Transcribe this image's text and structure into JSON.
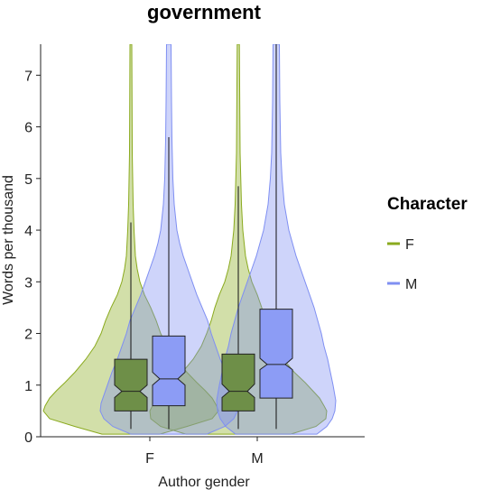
{
  "chart_data": {
    "type": "violin",
    "title": "government",
    "xlabel": "Author gender",
    "ylabel": "Words per thousand",
    "categories": [
      "F",
      "M"
    ],
    "yticks": [
      0,
      1,
      2,
      3,
      4,
      5,
      6,
      7
    ],
    "ylim": [
      0,
      7.6
    ],
    "legend": {
      "title": "Character",
      "placement": "right",
      "entries": [
        {
          "label": "F",
          "color": "#8aaa1e"
        },
        {
          "label": "M",
          "color": "#7f8ff2"
        }
      ]
    },
    "series": [
      {
        "name": "F",
        "color": "#8aaa1e",
        "box_fill": "#6e8f48",
        "groups": [
          {
            "category": "F",
            "q1": 0.5,
            "median": 0.88,
            "q3": 1.5,
            "notch_low": 0.76,
            "notch_high": 1.0,
            "whisker_low": 0.15,
            "whisker_high": 4.15,
            "density": [
              [
                0.05,
                0.32
              ],
              [
                0.2,
                0.62
              ],
              [
                0.35,
                0.9
              ],
              [
                0.5,
                0.97
              ],
              [
                0.6,
                0.95
              ],
              [
                0.75,
                0.9
              ],
              [
                0.9,
                0.82
              ],
              [
                1.05,
                0.73
              ],
              [
                1.25,
                0.62
              ],
              [
                1.5,
                0.5
              ],
              [
                1.75,
                0.4
              ],
              [
                2.0,
                0.33
              ],
              [
                2.25,
                0.28
              ],
              [
                2.5,
                0.22
              ],
              [
                2.75,
                0.15
              ],
              [
                3.0,
                0.1
              ],
              [
                3.25,
                0.07
              ],
              [
                3.5,
                0.05
              ],
              [
                4.0,
                0.035
              ],
              [
                4.5,
                0.025
              ],
              [
                5.5,
                0.015
              ],
              [
                7.6,
                0.01
              ]
            ]
          },
          {
            "category": "M",
            "q1": 0.5,
            "median": 0.88,
            "q3": 1.6,
            "notch_low": 0.76,
            "notch_high": 1.02,
            "whisker_low": 0.15,
            "whisker_high": 4.85,
            "density": [
              [
                0.05,
                0.58
              ],
              [
                0.2,
                0.86
              ],
              [
                0.35,
                0.97
              ],
              [
                0.5,
                0.98
              ],
              [
                0.6,
                0.95
              ],
              [
                0.75,
                0.9
              ],
              [
                0.9,
                0.82
              ],
              [
                1.05,
                0.74
              ],
              [
                1.25,
                0.62
              ],
              [
                1.5,
                0.5
              ],
              [
                1.75,
                0.41
              ],
              [
                2.0,
                0.35
              ],
              [
                2.25,
                0.3
              ],
              [
                2.5,
                0.26
              ],
              [
                2.75,
                0.21
              ],
              [
                3.0,
                0.15
              ],
              [
                3.25,
                0.11
              ],
              [
                3.5,
                0.08
              ],
              [
                4.0,
                0.05
              ],
              [
                4.5,
                0.035
              ],
              [
                5.5,
                0.02
              ],
              [
                7.6,
                0.012
              ]
            ]
          }
        ]
      },
      {
        "name": "M",
        "color": "#7f8ff2",
        "box_fill": "#8c9cf5",
        "groups": [
          {
            "category": "F",
            "q1": 0.6,
            "median": 1.12,
            "q3": 1.95,
            "notch_low": 1.0,
            "notch_high": 1.25,
            "whisker_low": 0.15,
            "whisker_high": 5.8,
            "density": [
              [
                0.05,
                0.42
              ],
              [
                0.2,
                0.62
              ],
              [
                0.35,
                0.72
              ],
              [
                0.5,
                0.76
              ],
              [
                0.65,
                0.75
              ],
              [
                0.8,
                0.72
              ],
              [
                1.0,
                0.68
              ],
              [
                1.25,
                0.63
              ],
              [
                1.5,
                0.57
              ],
              [
                1.75,
                0.52
              ],
              [
                2.0,
                0.47
              ],
              [
                2.25,
                0.43
              ],
              [
                2.5,
                0.37
              ],
              [
                2.75,
                0.31
              ],
              [
                3.0,
                0.26
              ],
              [
                3.25,
                0.21
              ],
              [
                3.5,
                0.16
              ],
              [
                3.75,
                0.12
              ],
              [
                4.0,
                0.09
              ],
              [
                4.5,
                0.06
              ],
              [
                5.0,
                0.045
              ],
              [
                5.75,
                0.035
              ],
              [
                6.5,
                0.03
              ],
              [
                7.6,
                0.025
              ]
            ]
          },
          {
            "category": "M",
            "q1": 0.75,
            "median": 1.4,
            "q3": 2.47,
            "notch_low": 1.3,
            "notch_high": 1.52,
            "whisker_low": 0.15,
            "whisker_high": 7.6,
            "density": [
              [
                0.05,
                0.45
              ],
              [
                0.2,
                0.56
              ],
              [
                0.35,
                0.62
              ],
              [
                0.5,
                0.65
              ],
              [
                0.7,
                0.66
              ],
              [
                1.0,
                0.63
              ],
              [
                1.25,
                0.6
              ],
              [
                1.5,
                0.57
              ],
              [
                1.75,
                0.53
              ],
              [
                2.0,
                0.5
              ],
              [
                2.25,
                0.46
              ],
              [
                2.5,
                0.42
              ],
              [
                2.75,
                0.37
              ],
              [
                3.0,
                0.32
              ],
              [
                3.25,
                0.27
              ],
              [
                3.5,
                0.22
              ],
              [
                3.75,
                0.18
              ],
              [
                4.0,
                0.14
              ],
              [
                4.5,
                0.09
              ],
              [
                5.0,
                0.065
              ],
              [
                5.5,
                0.05
              ],
              [
                6.5,
                0.04
              ],
              [
                7.6,
                0.035
              ]
            ]
          }
        ]
      }
    ]
  }
}
